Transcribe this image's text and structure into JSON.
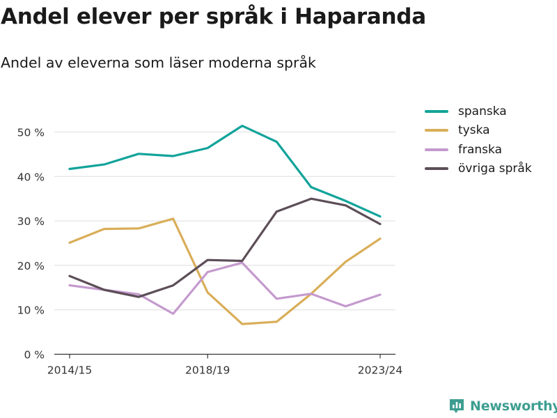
{
  "title": "Andel elever per språk i Haparanda",
  "subtitle": "Andel av eleverna som läser moderna språk",
  "brand": {
    "name": "Newsworthy",
    "icon": "bar-chart-logo-icon",
    "color": "#3e9e91"
  },
  "chart_data": {
    "type": "line",
    "title": "Andel elever per språk i Haparanda",
    "subtitle": "Andel av eleverna som läser moderna språk",
    "xlabel": "",
    "ylabel": "",
    "ylim": [
      0,
      50
    ],
    "yticks": [
      0,
      10,
      20,
      30,
      40,
      50
    ],
    "ytick_labels": [
      "0 %",
      "10 %",
      "20 %",
      "30 %",
      "40 %",
      "50 %"
    ],
    "x": [
      "2014/15",
      "2015/16",
      "2016/17",
      "2017/18",
      "2018/19",
      "2019/20",
      "2020/21",
      "2021/22",
      "2022/23",
      "2023/24"
    ],
    "xtick_labels": [
      "2014/15",
      "2018/19",
      "2023/24"
    ],
    "grid": "horizontal",
    "legend_position": "top-right",
    "series": [
      {
        "name": "spanska",
        "color": "#12a39a",
        "values": [
          41.7,
          42.7,
          45.1,
          44.6,
          46.4,
          51.4,
          47.8,
          37.6,
          34.5,
          31.0
        ]
      },
      {
        "name": "tyska",
        "color": "#d9ae59",
        "values": [
          25.1,
          28.2,
          28.3,
          30.5,
          13.9,
          6.8,
          7.3,
          13.6,
          20.8,
          26.0
        ]
      },
      {
        "name": "franska",
        "color": "#c49ace",
        "values": [
          15.5,
          14.5,
          13.5,
          9.1,
          18.5,
          20.6,
          12.5,
          13.6,
          10.8,
          13.4
        ]
      },
      {
        "name": "övriga språk",
        "color": "#5c4e57",
        "values": [
          17.6,
          14.5,
          12.9,
          15.5,
          21.2,
          21.0,
          32.1,
          35.0,
          33.5,
          29.3
        ]
      }
    ]
  }
}
